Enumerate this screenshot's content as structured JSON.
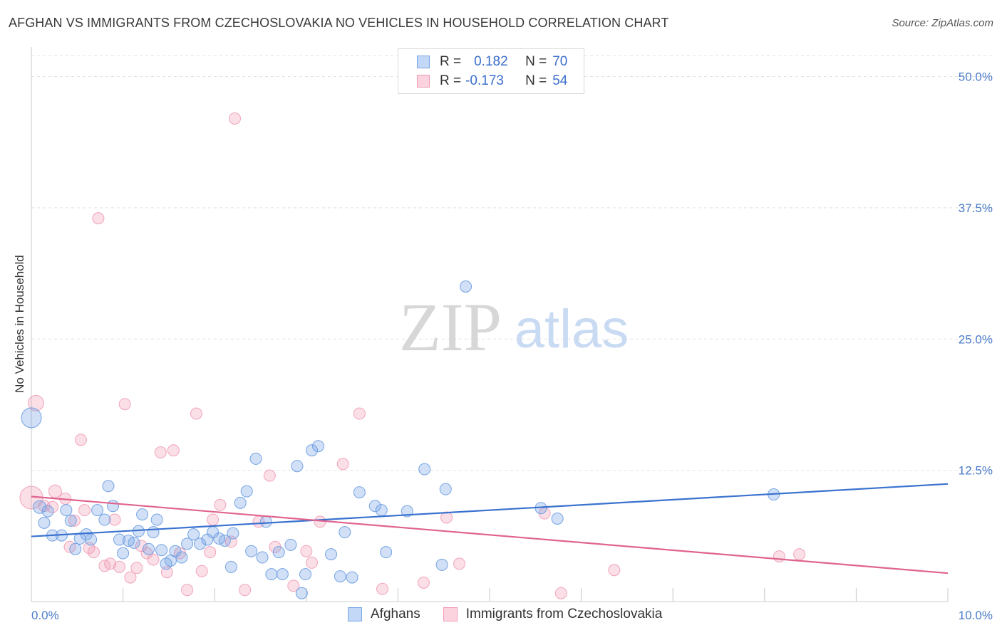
{
  "title": "AFGHAN VS IMMIGRANTS FROM CZECHOSLOVAKIA NO VEHICLES IN HOUSEHOLD CORRELATION CHART",
  "source": "Source: ZipAtlas.com",
  "watermark": {
    "zip": "ZIP",
    "atlas": "atlas"
  },
  "legend": {
    "rows": [
      {
        "r_label": "R =",
        "r_value": "0.182",
        "n_label": "N =",
        "n_value": "70"
      },
      {
        "r_label": "R =",
        "r_value": "-0.173",
        "n_label": "N =",
        "n_value": "54"
      }
    ]
  },
  "bottom_legend": {
    "series1": "Afghans",
    "series2": "Immigrants from Czechoslovakia"
  },
  "chart_data": {
    "type": "scatter",
    "title": "AFGHAN VS IMMIGRANTS FROM CZECHOSLOVAKIA NO VEHICLES IN HOUSEHOLD CORRELATION CHART",
    "xlabel": "",
    "ylabel": "No Vehicles in Household",
    "xlim": [
      0,
      10
    ],
    "ylim": [
      0,
      52
    ],
    "x_ticks": [
      "0.0%",
      "10.0%"
    ],
    "y_ticks": [
      {
        "value": 12.5,
        "label": "12.5%"
      },
      {
        "value": 25.0,
        "label": "25.0%"
      },
      {
        "value": 37.5,
        "label": "37.5%"
      },
      {
        "value": 50.0,
        "label": "50.0%"
      }
    ],
    "grid": true,
    "legend_position": "top-center",
    "colors": {
      "afghans": "#6f9fe3",
      "afghans_line": "#3a72cf",
      "czech": "#f19bb5",
      "czech_line": "#e0638e"
    },
    "series": [
      {
        "name": "Afghans",
        "trend": [
          [
            0.0,
            6.2
          ],
          [
            10.0,
            11.2
          ]
        ],
        "points": [
          [
            0.0,
            17.5,
            14
          ],
          [
            0.09,
            9.0,
            9
          ],
          [
            0.14,
            7.5,
            8
          ],
          [
            0.18,
            8.6,
            8
          ],
          [
            0.23,
            6.3,
            8
          ],
          [
            0.33,
            6.3,
            8
          ],
          [
            0.38,
            8.7,
            8
          ],
          [
            0.43,
            7.7,
            8
          ],
          [
            0.48,
            5.0,
            8
          ],
          [
            0.53,
            6.0,
            8
          ],
          [
            0.6,
            6.4,
            8
          ],
          [
            0.65,
            5.9,
            8
          ],
          [
            0.72,
            8.7,
            8
          ],
          [
            0.8,
            7.8,
            8
          ],
          [
            0.84,
            11.0,
            8
          ],
          [
            0.89,
            9.1,
            8
          ],
          [
            0.96,
            5.9,
            8
          ],
          [
            1.0,
            4.6,
            8
          ],
          [
            1.06,
            5.8,
            8
          ],
          [
            1.12,
            5.6,
            8
          ],
          [
            1.17,
            6.7,
            8
          ],
          [
            1.21,
            8.3,
            8
          ],
          [
            1.28,
            5.0,
            8
          ],
          [
            1.33,
            6.6,
            8
          ],
          [
            1.37,
            7.8,
            8
          ],
          [
            1.42,
            4.9,
            8
          ],
          [
            1.47,
            3.6,
            8
          ],
          [
            1.52,
            3.9,
            8
          ],
          [
            1.57,
            4.8,
            8
          ],
          [
            1.64,
            4.2,
            8
          ],
          [
            1.7,
            5.5,
            8
          ],
          [
            1.77,
            6.4,
            8
          ],
          [
            1.84,
            5.5,
            8
          ],
          [
            1.92,
            5.9,
            8
          ],
          [
            1.98,
            6.6,
            8
          ],
          [
            2.05,
            6.0,
            8
          ],
          [
            2.11,
            5.8,
            8
          ],
          [
            2.18,
            3.3,
            8
          ],
          [
            2.2,
            6.5,
            8
          ],
          [
            2.28,
            9.4,
            8
          ],
          [
            2.35,
            10.5,
            8
          ],
          [
            2.4,
            4.8,
            8
          ],
          [
            2.45,
            13.6,
            8
          ],
          [
            2.52,
            4.2,
            8
          ],
          [
            2.56,
            7.6,
            8
          ],
          [
            2.62,
            2.6,
            8
          ],
          [
            2.7,
            4.7,
            8
          ],
          [
            2.74,
            2.6,
            8
          ],
          [
            2.83,
            5.4,
            8
          ],
          [
            2.9,
            12.9,
            8
          ],
          [
            2.95,
            0.8,
            8
          ],
          [
            2.99,
            2.6,
            8
          ],
          [
            3.06,
            14.4,
            8
          ],
          [
            3.13,
            14.8,
            8
          ],
          [
            3.27,
            4.5,
            8
          ],
          [
            3.37,
            2.4,
            8
          ],
          [
            3.42,
            6.6,
            8
          ],
          [
            3.5,
            2.3,
            8
          ],
          [
            3.58,
            10.4,
            8
          ],
          [
            3.75,
            9.1,
            8
          ],
          [
            3.82,
            8.7,
            8
          ],
          [
            3.87,
            4.7,
            8
          ],
          [
            4.1,
            8.6,
            8
          ],
          [
            4.29,
            12.6,
            8
          ],
          [
            4.48,
            3.5,
            8
          ],
          [
            4.52,
            10.7,
            8
          ],
          [
            4.74,
            30.0,
            8
          ],
          [
            5.56,
            8.9,
            8
          ],
          [
            5.74,
            7.9,
            8
          ],
          [
            8.1,
            10.2,
            8
          ]
        ]
      },
      {
        "name": "Immigrants from Czechoslovakia",
        "trend": [
          [
            0.0,
            10.0
          ],
          [
            10.0,
            2.7
          ]
        ],
        "points": [
          [
            0.0,
            9.9,
            16
          ],
          [
            0.05,
            18.9,
            11
          ],
          [
            0.14,
            9.1,
            8
          ],
          [
            0.26,
            10.5,
            9
          ],
          [
            0.37,
            9.8,
            8
          ],
          [
            0.42,
            5.2,
            8
          ],
          [
            0.47,
            7.7,
            8
          ],
          [
            0.54,
            15.4,
            8
          ],
          [
            0.58,
            8.7,
            8
          ],
          [
            0.63,
            5.1,
            8
          ],
          [
            0.68,
            4.7,
            8
          ],
          [
            0.73,
            36.5,
            8
          ],
          [
            0.8,
            3.4,
            8
          ],
          [
            0.86,
            3.6,
            8
          ],
          [
            0.91,
            7.8,
            8
          ],
          [
            0.96,
            3.3,
            8
          ],
          [
            1.02,
            18.8,
            8
          ],
          [
            1.08,
            2.3,
            8
          ],
          [
            1.15,
            3.2,
            8
          ],
          [
            1.2,
            5.3,
            8
          ],
          [
            1.26,
            4.6,
            8
          ],
          [
            1.33,
            4.0,
            8
          ],
          [
            1.41,
            14.2,
            8
          ],
          [
            1.48,
            2.8,
            8
          ],
          [
            1.55,
            14.4,
            8
          ],
          [
            1.62,
            4.6,
            8
          ],
          [
            1.7,
            1.1,
            8
          ],
          [
            1.8,
            17.9,
            8
          ],
          [
            1.86,
            2.9,
            8
          ],
          [
            1.95,
            4.7,
            8
          ],
          [
            1.98,
            7.8,
            8
          ],
          [
            2.06,
            9.2,
            8
          ],
          [
            2.18,
            5.7,
            8
          ],
          [
            2.22,
            46.0,
            8
          ],
          [
            2.33,
            1.1,
            8
          ],
          [
            2.48,
            7.6,
            8
          ],
          [
            2.6,
            12.0,
            8
          ],
          [
            2.66,
            5.2,
            8
          ],
          [
            2.86,
            1.5,
            8
          ],
          [
            3.0,
            4.8,
            8
          ],
          [
            3.06,
            3.7,
            8
          ],
          [
            3.15,
            7.6,
            8
          ],
          [
            3.4,
            13.1,
            8
          ],
          [
            3.58,
            17.9,
            8
          ],
          [
            3.83,
            1.2,
            8
          ],
          [
            4.28,
            1.8,
            8
          ],
          [
            4.53,
            8.0,
            8
          ],
          [
            4.67,
            3.6,
            8
          ],
          [
            5.6,
            8.4,
            8
          ],
          [
            5.78,
            0.8,
            8
          ],
          [
            6.36,
            3.0,
            8
          ],
          [
            8.16,
            4.3,
            8
          ],
          [
            8.38,
            4.5,
            8
          ],
          [
            0.23,
            9.0,
            8
          ]
        ]
      }
    ]
  }
}
